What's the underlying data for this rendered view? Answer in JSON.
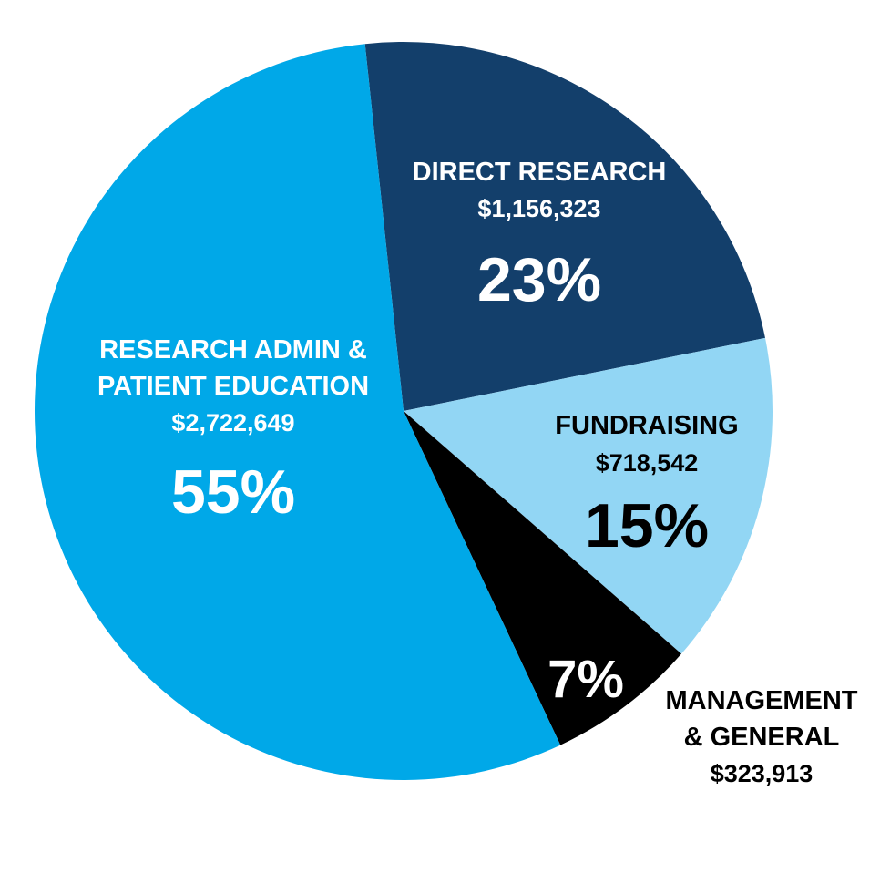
{
  "chart_data": {
    "type": "pie",
    "legend": "none",
    "slices": [
      {
        "key": "direct",
        "label_lines": [
          "DIRECT RESEARCH"
        ],
        "amount": "$1,156,323",
        "value": 1156323,
        "percent_label": "23%",
        "percent": 23,
        "color": "#133f6b",
        "text_color": "#ffffff"
      },
      {
        "key": "fundraising",
        "label_lines": [
          "FUNDRAISING"
        ],
        "amount": "$718,542",
        "value": 718542,
        "percent_label": "15%",
        "percent": 15,
        "color": "#92d6f4",
        "text_color": "#000000"
      },
      {
        "key": "management",
        "label_lines": [
          "MANAGEMENT",
          "& GENERAL"
        ],
        "amount": "$323,913",
        "value": 323913,
        "percent_label": "7%",
        "percent": 7,
        "color": "#000000",
        "text_color": "#000000",
        "percent_text_color": "#ffffff"
      },
      {
        "key": "research",
        "label_lines": [
          "RESEARCH ADMIN &",
          "PATIENT EDUCATION"
        ],
        "amount": "$2,722,649",
        "value": 2722649,
        "percent_label": "55%",
        "percent": 55,
        "color": "#00a8e8",
        "text_color": "#ffffff"
      }
    ]
  }
}
